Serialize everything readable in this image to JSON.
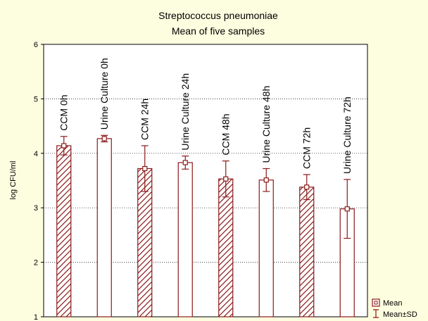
{
  "chart_data": {
    "type": "bar",
    "title": "Streptococcus pneumoniae",
    "subtitle": "Mean of five samples",
    "xlabel": "",
    "ylabel": "log CFU/ml",
    "ylim": [
      1,
      6
    ],
    "yticks": [
      1,
      2,
      3,
      4,
      5,
      6
    ],
    "grid": true,
    "legend_position": "bottom-right",
    "bar_color": "#8b1a1a",
    "background": "#fdfde0",
    "plot_background": "#ffffff",
    "categories": [
      "CCM 0h",
      "Urine Culture 0h",
      "CCM 24h",
      "Urine Culture 24h",
      "CCM 48h",
      "Urine Culture 48h",
      "CCM 72h",
      "Urine Culture 72h"
    ],
    "hatched": [
      true,
      false,
      true,
      false,
      true,
      false,
      true,
      false
    ],
    "series": [
      {
        "name": "Mean",
        "values": [
          4.14,
          4.27,
          3.72,
          3.83,
          3.53,
          3.51,
          3.38,
          2.98
        ],
        "sd": [
          0.17,
          0.06,
          0.42,
          0.12,
          0.33,
          0.21,
          0.23,
          0.54
        ]
      }
    ],
    "legend": [
      {
        "label": "Mean",
        "symbol": "square-icon"
      },
      {
        "label": "Mean±SD",
        "symbol": "error-bar-icon"
      }
    ]
  }
}
